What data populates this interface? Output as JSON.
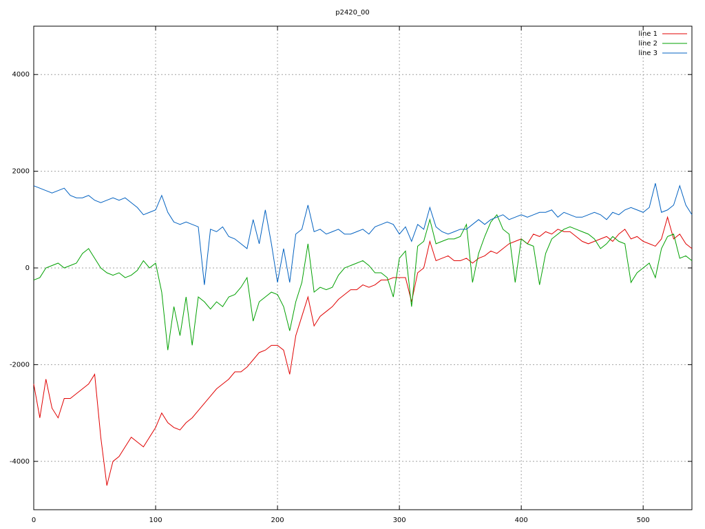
{
  "chart_data": {
    "type": "line",
    "title": "p2420_00",
    "x": [
      0,
      5,
      10,
      15,
      20,
      25,
      30,
      35,
      40,
      45,
      50,
      55,
      60,
      65,
      70,
      75,
      80,
      85,
      90,
      95,
      100,
      105,
      110,
      115,
      120,
      125,
      130,
      135,
      140,
      145,
      150,
      155,
      160,
      165,
      170,
      175,
      180,
      185,
      190,
      195,
      200,
      205,
      210,
      215,
      220,
      225,
      230,
      235,
      240,
      245,
      250,
      255,
      260,
      265,
      270,
      275,
      280,
      285,
      290,
      295,
      300,
      305,
      310,
      315,
      320,
      325,
      330,
      335,
      340,
      345,
      350,
      355,
      360,
      365,
      370,
      375,
      380,
      385,
      390,
      395,
      400,
      405,
      410,
      415,
      420,
      425,
      430,
      435,
      440,
      445,
      450,
      455,
      460,
      465,
      470,
      475,
      480,
      485,
      490,
      495,
      500,
      505,
      510,
      515,
      520,
      525,
      530,
      535,
      540
    ],
    "series": [
      {
        "name": "line 1",
        "color": "#e00000",
        "values": [
          -2400,
          -3100,
          -2300,
          -2900,
          -3100,
          -2700,
          -2700,
          -2600,
          -2500,
          -2400,
          -2200,
          -3500,
          -4500,
          -4000,
          -3900,
          -3700,
          -3500,
          -3600,
          -3700,
          -3500,
          -3300,
          -3000,
          -3200,
          -3300,
          -3350,
          -3200,
          -3100,
          -2950,
          -2800,
          -2650,
          -2500,
          -2400,
          -2300,
          -2150,
          -2150,
          -2050,
          -1900,
          -1750,
          -1700,
          -1600,
          -1600,
          -1700,
          -2200,
          -1400,
          -1000,
          -600,
          -1200,
          -1000,
          -900,
          -800,
          -650,
          -550,
          -450,
          -450,
          -350,
          -400,
          -350,
          -250,
          -250,
          -200,
          -200,
          -200,
          -700,
          -100,
          0,
          550,
          150,
          200,
          250,
          150,
          150,
          200,
          100,
          200,
          250,
          350,
          300,
          400,
          500,
          550,
          600,
          500,
          700,
          650,
          750,
          700,
          800,
          750,
          750,
          650,
          550,
          500,
          550,
          600,
          650,
          550,
          700,
          800,
          600,
          650,
          550,
          500,
          450,
          600,
          1050,
          600,
          700,
          500,
          400
        ]
      },
      {
        "name": "line 2",
        "color": "#00a000",
        "values": [
          -250,
          -200,
          0,
          50,
          100,
          0,
          50,
          100,
          300,
          400,
          200,
          0,
          -100,
          -150,
          -100,
          -200,
          -150,
          -50,
          150,
          0,
          100,
          -500,
          -1700,
          -800,
          -1400,
          -600,
          -1600,
          -600,
          -700,
          -850,
          -700,
          -800,
          -600,
          -550,
          -400,
          -200,
          -1100,
          -700,
          -600,
          -500,
          -550,
          -800,
          -1300,
          -700,
          -300,
          500,
          -500,
          -400,
          -450,
          -400,
          -150,
          0,
          50,
          100,
          150,
          50,
          -100,
          -100,
          -200,
          -600,
          200,
          350,
          -800,
          450,
          550,
          1000,
          500,
          550,
          600,
          600,
          650,
          900,
          -300,
          300,
          650,
          950,
          1100,
          800,
          700,
          -300,
          600,
          500,
          450,
          -350,
          300,
          600,
          700,
          800,
          850,
          800,
          750,
          700,
          600,
          400,
          500,
          650,
          550,
          500,
          -300,
          -100,
          0,
          100,
          -200,
          400,
          650,
          700,
          200,
          250,
          150
        ]
      },
      {
        "name": "line 3",
        "color": "#0060c0",
        "values": [
          1700,
          1650,
          1600,
          1550,
          1600,
          1650,
          1500,
          1450,
          1450,
          1500,
          1400,
          1350,
          1400,
          1450,
          1400,
          1450,
          1350,
          1250,
          1100,
          1150,
          1200,
          1500,
          1150,
          950,
          900,
          950,
          900,
          850,
          -350,
          800,
          750,
          850,
          650,
          600,
          500,
          400,
          1000,
          500,
          1200,
          500,
          -300,
          400,
          -300,
          700,
          800,
          1300,
          750,
          800,
          700,
          750,
          800,
          700,
          700,
          750,
          800,
          700,
          850,
          900,
          950,
          900,
          700,
          850,
          550,
          900,
          800,
          1250,
          850,
          750,
          700,
          750,
          800,
          800,
          900,
          1000,
          900,
          1000,
          1050,
          1100,
          1000,
          1050,
          1100,
          1050,
          1100,
          1150,
          1150,
          1200,
          1050,
          1150,
          1100,
          1050,
          1050,
          1100,
          1150,
          1100,
          1000,
          1150,
          1100,
          1200,
          1250,
          1200,
          1150,
          1250,
          1750,
          1150,
          1200,
          1300,
          1700,
          1300,
          1100
        ]
      }
    ],
    "xlim": [
      0,
      540
    ],
    "ylim": [
      -5000,
      5000
    ],
    "xticks": [
      0,
      100,
      200,
      300,
      400,
      500
    ],
    "yticks": [
      -4000,
      -2000,
      0,
      2000,
      4000
    ],
    "grid": true,
    "legend": "top-right"
  }
}
